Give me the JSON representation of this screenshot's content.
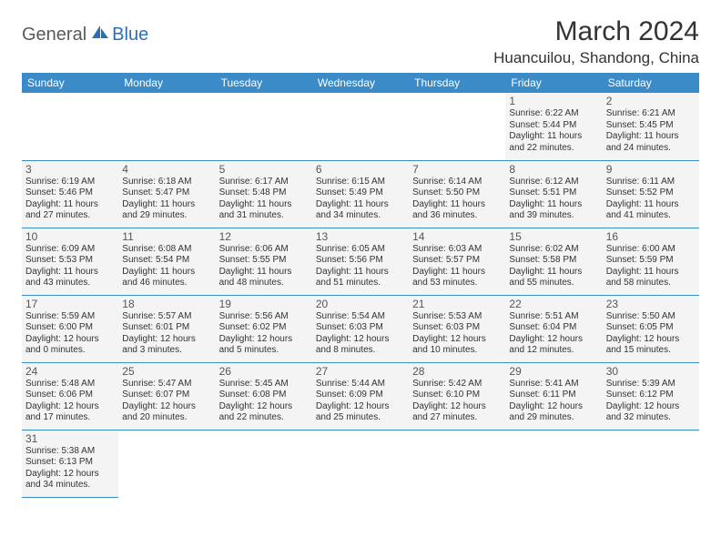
{
  "logo": {
    "part1": "General",
    "part2": "Blue"
  },
  "title": "March 2024",
  "location": "Huancuilou, Shandong, China",
  "colors": {
    "header_bg": "#3b8bc9",
    "header_text": "#ffffff",
    "cell_bg": "#f4f4f4",
    "border": "#3b8bc9",
    "logo_gray": "#5a5a5a",
    "logo_blue": "#2d6fb5"
  },
  "day_headers": [
    "Sunday",
    "Monday",
    "Tuesday",
    "Wednesday",
    "Thursday",
    "Friday",
    "Saturday"
  ],
  "weeks": [
    [
      null,
      null,
      null,
      null,
      null,
      {
        "n": "1",
        "sr": "Sunrise: 6:22 AM",
        "ss": "Sunset: 5:44 PM",
        "d1": "Daylight: 11 hours",
        "d2": "and 22 minutes."
      },
      {
        "n": "2",
        "sr": "Sunrise: 6:21 AM",
        "ss": "Sunset: 5:45 PM",
        "d1": "Daylight: 11 hours",
        "d2": "and 24 minutes."
      }
    ],
    [
      {
        "n": "3",
        "sr": "Sunrise: 6:19 AM",
        "ss": "Sunset: 5:46 PM",
        "d1": "Daylight: 11 hours",
        "d2": "and 27 minutes."
      },
      {
        "n": "4",
        "sr": "Sunrise: 6:18 AM",
        "ss": "Sunset: 5:47 PM",
        "d1": "Daylight: 11 hours",
        "d2": "and 29 minutes."
      },
      {
        "n": "5",
        "sr": "Sunrise: 6:17 AM",
        "ss": "Sunset: 5:48 PM",
        "d1": "Daylight: 11 hours",
        "d2": "and 31 minutes."
      },
      {
        "n": "6",
        "sr": "Sunrise: 6:15 AM",
        "ss": "Sunset: 5:49 PM",
        "d1": "Daylight: 11 hours",
        "d2": "and 34 minutes."
      },
      {
        "n": "7",
        "sr": "Sunrise: 6:14 AM",
        "ss": "Sunset: 5:50 PM",
        "d1": "Daylight: 11 hours",
        "d2": "and 36 minutes."
      },
      {
        "n": "8",
        "sr": "Sunrise: 6:12 AM",
        "ss": "Sunset: 5:51 PM",
        "d1": "Daylight: 11 hours",
        "d2": "and 39 minutes."
      },
      {
        "n": "9",
        "sr": "Sunrise: 6:11 AM",
        "ss": "Sunset: 5:52 PM",
        "d1": "Daylight: 11 hours",
        "d2": "and 41 minutes."
      }
    ],
    [
      {
        "n": "10",
        "sr": "Sunrise: 6:09 AM",
        "ss": "Sunset: 5:53 PM",
        "d1": "Daylight: 11 hours",
        "d2": "and 43 minutes."
      },
      {
        "n": "11",
        "sr": "Sunrise: 6:08 AM",
        "ss": "Sunset: 5:54 PM",
        "d1": "Daylight: 11 hours",
        "d2": "and 46 minutes."
      },
      {
        "n": "12",
        "sr": "Sunrise: 6:06 AM",
        "ss": "Sunset: 5:55 PM",
        "d1": "Daylight: 11 hours",
        "d2": "and 48 minutes."
      },
      {
        "n": "13",
        "sr": "Sunrise: 6:05 AM",
        "ss": "Sunset: 5:56 PM",
        "d1": "Daylight: 11 hours",
        "d2": "and 51 minutes."
      },
      {
        "n": "14",
        "sr": "Sunrise: 6:03 AM",
        "ss": "Sunset: 5:57 PM",
        "d1": "Daylight: 11 hours",
        "d2": "and 53 minutes."
      },
      {
        "n": "15",
        "sr": "Sunrise: 6:02 AM",
        "ss": "Sunset: 5:58 PM",
        "d1": "Daylight: 11 hours",
        "d2": "and 55 minutes."
      },
      {
        "n": "16",
        "sr": "Sunrise: 6:00 AM",
        "ss": "Sunset: 5:59 PM",
        "d1": "Daylight: 11 hours",
        "d2": "and 58 minutes."
      }
    ],
    [
      {
        "n": "17",
        "sr": "Sunrise: 5:59 AM",
        "ss": "Sunset: 6:00 PM",
        "d1": "Daylight: 12 hours",
        "d2": "and 0 minutes."
      },
      {
        "n": "18",
        "sr": "Sunrise: 5:57 AM",
        "ss": "Sunset: 6:01 PM",
        "d1": "Daylight: 12 hours",
        "d2": "and 3 minutes."
      },
      {
        "n": "19",
        "sr": "Sunrise: 5:56 AM",
        "ss": "Sunset: 6:02 PM",
        "d1": "Daylight: 12 hours",
        "d2": "and 5 minutes."
      },
      {
        "n": "20",
        "sr": "Sunrise: 5:54 AM",
        "ss": "Sunset: 6:03 PM",
        "d1": "Daylight: 12 hours",
        "d2": "and 8 minutes."
      },
      {
        "n": "21",
        "sr": "Sunrise: 5:53 AM",
        "ss": "Sunset: 6:03 PM",
        "d1": "Daylight: 12 hours",
        "d2": "and 10 minutes."
      },
      {
        "n": "22",
        "sr": "Sunrise: 5:51 AM",
        "ss": "Sunset: 6:04 PM",
        "d1": "Daylight: 12 hours",
        "d2": "and 12 minutes."
      },
      {
        "n": "23",
        "sr": "Sunrise: 5:50 AM",
        "ss": "Sunset: 6:05 PM",
        "d1": "Daylight: 12 hours",
        "d2": "and 15 minutes."
      }
    ],
    [
      {
        "n": "24",
        "sr": "Sunrise: 5:48 AM",
        "ss": "Sunset: 6:06 PM",
        "d1": "Daylight: 12 hours",
        "d2": "and 17 minutes."
      },
      {
        "n": "25",
        "sr": "Sunrise: 5:47 AM",
        "ss": "Sunset: 6:07 PM",
        "d1": "Daylight: 12 hours",
        "d2": "and 20 minutes."
      },
      {
        "n": "26",
        "sr": "Sunrise: 5:45 AM",
        "ss": "Sunset: 6:08 PM",
        "d1": "Daylight: 12 hours",
        "d2": "and 22 minutes."
      },
      {
        "n": "27",
        "sr": "Sunrise: 5:44 AM",
        "ss": "Sunset: 6:09 PM",
        "d1": "Daylight: 12 hours",
        "d2": "and 25 minutes."
      },
      {
        "n": "28",
        "sr": "Sunrise: 5:42 AM",
        "ss": "Sunset: 6:10 PM",
        "d1": "Daylight: 12 hours",
        "d2": "and 27 minutes."
      },
      {
        "n": "29",
        "sr": "Sunrise: 5:41 AM",
        "ss": "Sunset: 6:11 PM",
        "d1": "Daylight: 12 hours",
        "d2": "and 29 minutes."
      },
      {
        "n": "30",
        "sr": "Sunrise: 5:39 AM",
        "ss": "Sunset: 6:12 PM",
        "d1": "Daylight: 12 hours",
        "d2": "and 32 minutes."
      }
    ],
    [
      {
        "n": "31",
        "sr": "Sunrise: 5:38 AM",
        "ss": "Sunset: 6:13 PM",
        "d1": "Daylight: 12 hours",
        "d2": "and 34 minutes."
      },
      null,
      null,
      null,
      null,
      null,
      null
    ]
  ]
}
